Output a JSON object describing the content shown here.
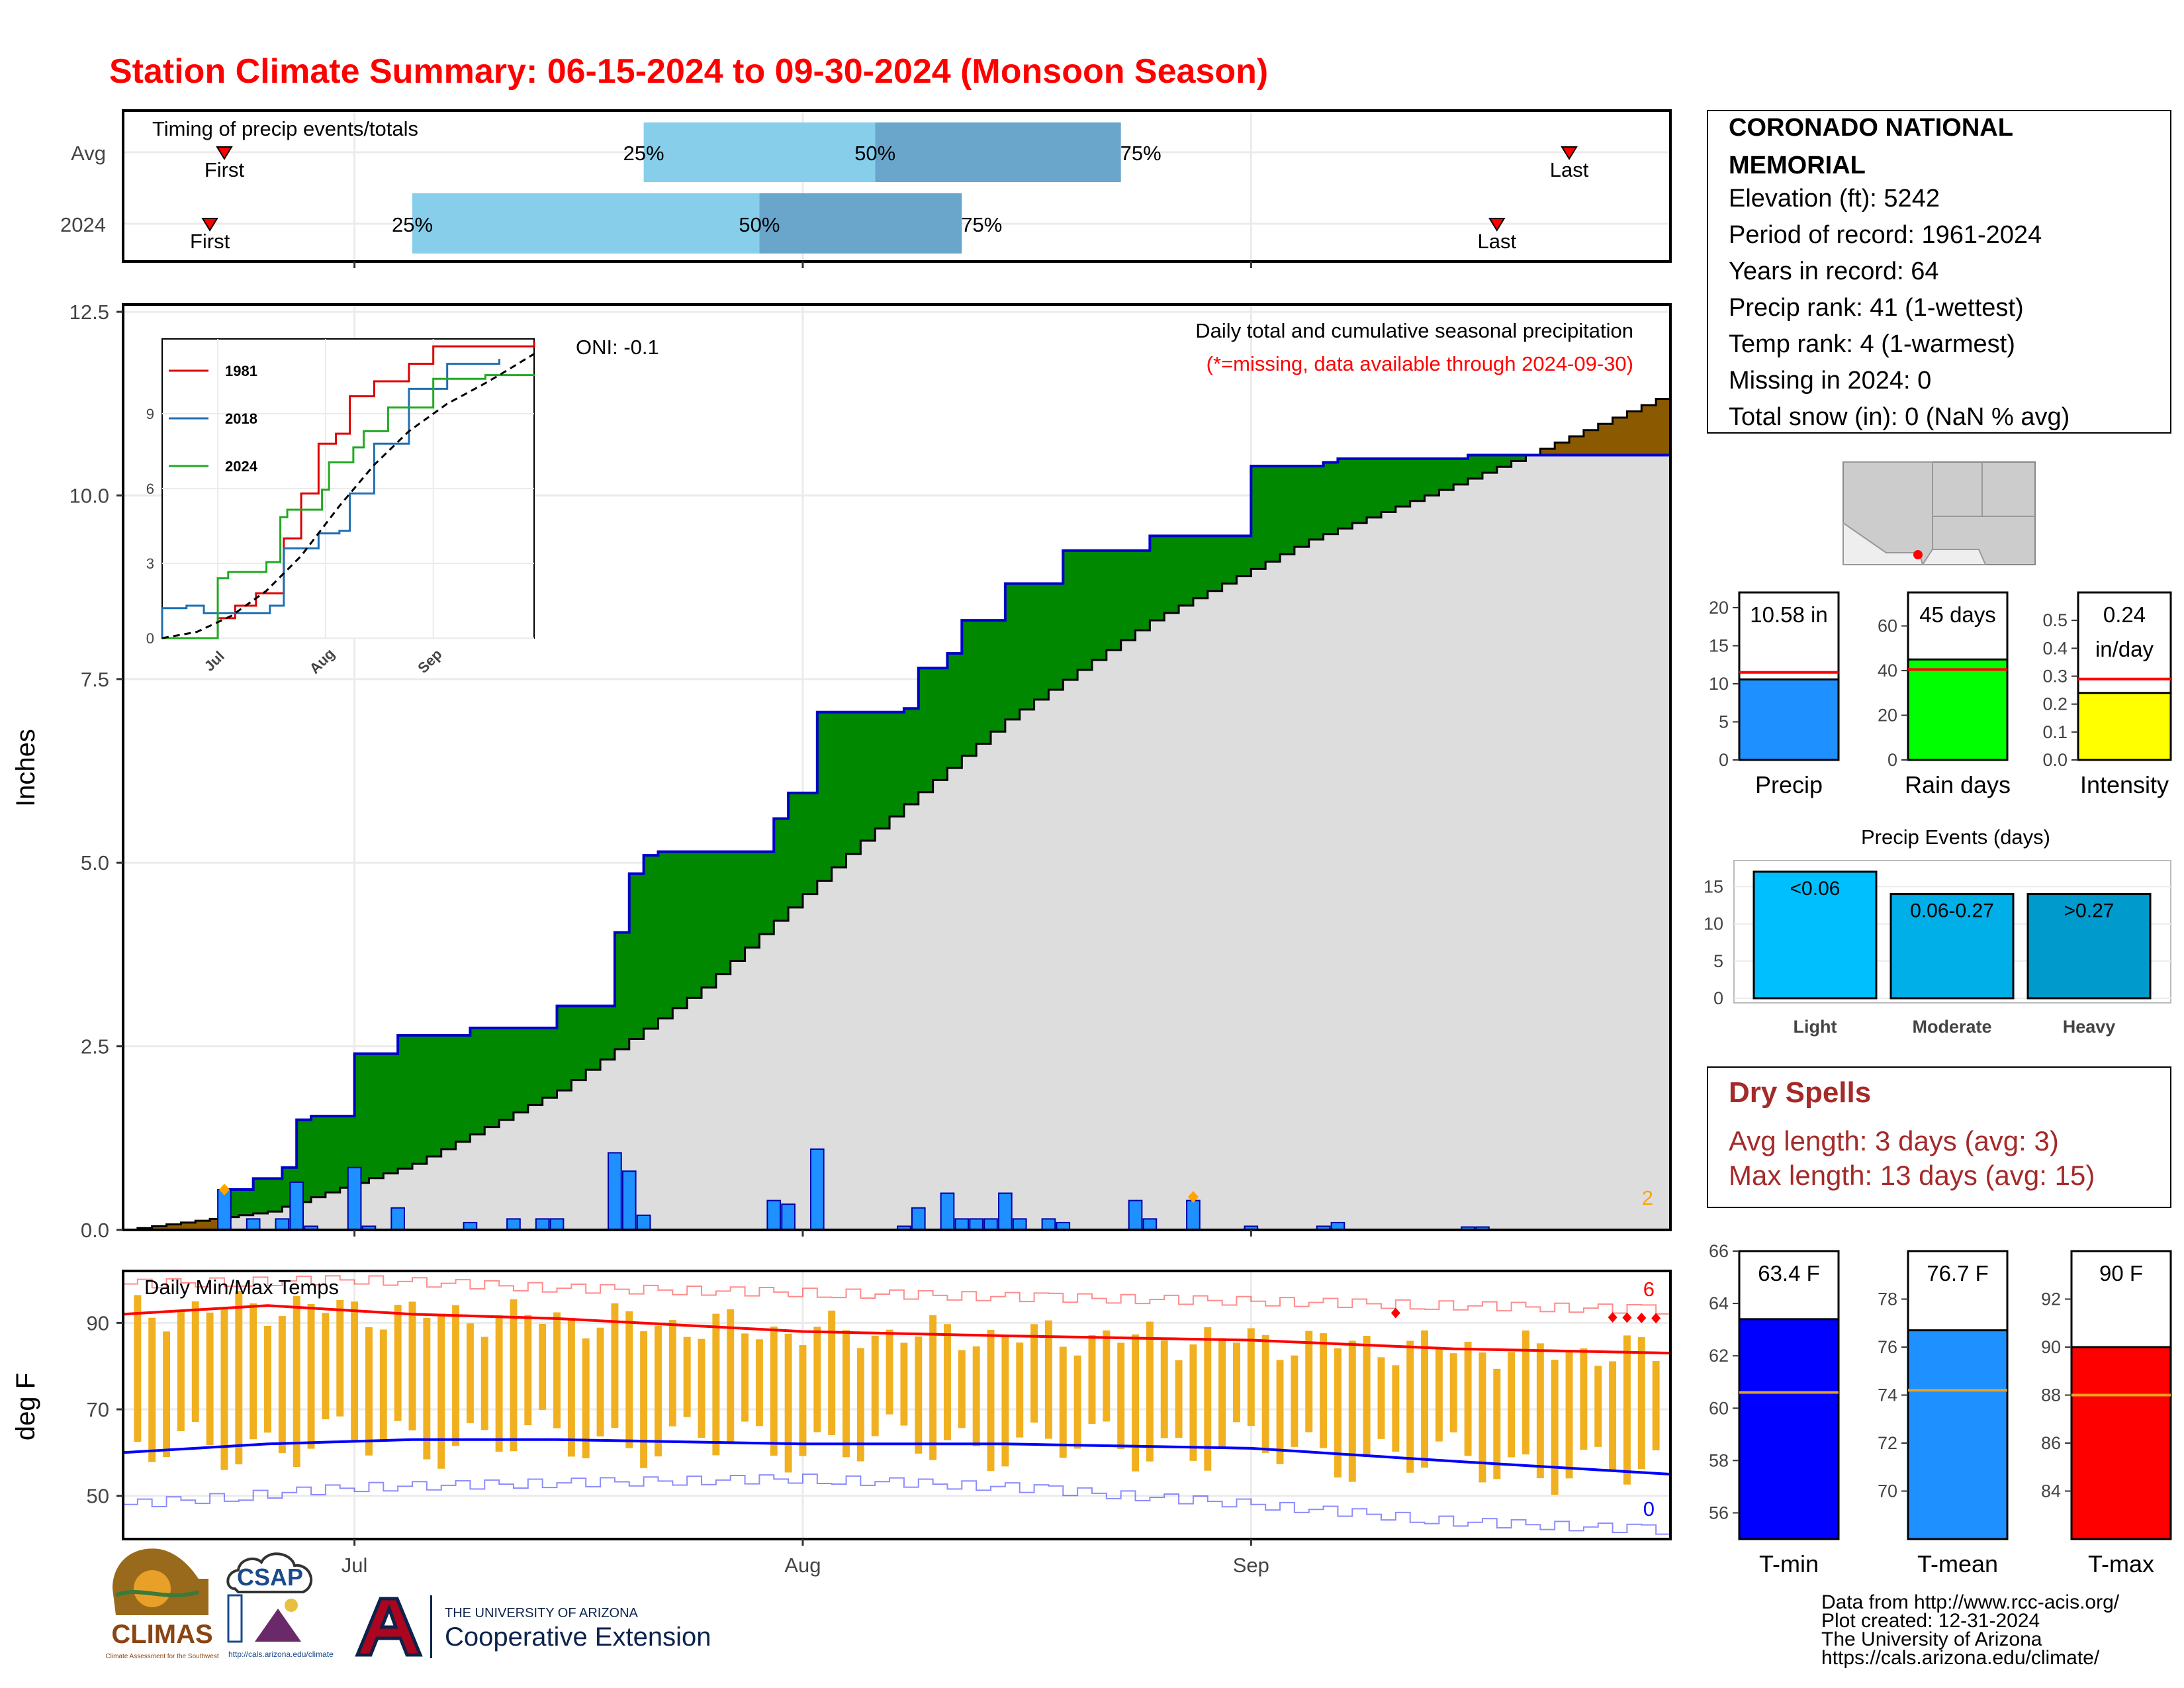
{
  "title": "Station Climate Summary: 06-15-2024 to 09-30-2024 (Monsoon Season)",
  "colors": {
    "title": "#ff0000",
    "green_fill": "#008800",
    "brown_fill": "#8b5a00",
    "normal_fill": "#dddddd",
    "cum_line": "#0000cc",
    "bar_blue": "#1e90ff",
    "tmin": "#0000ff",
    "tmean": "#1e90ff",
    "tmax": "#ff0000",
    "range_bars": "#f0b020",
    "light_q": "#87ceeb",
    "dark_q": "#6aa6cc",
    "dry_spells": "#a52a2a",
    "precip_gauge": "#1e90ff",
    "raindays_gauge": "#00ff00",
    "intensity_gauge": "#ffff00",
    "events": [
      "#00bfff",
      "#00aee8",
      "#009acc"
    ]
  },
  "timing_panel": {
    "title": "Timing of precip events/totals",
    "row_labels": [
      "Avg",
      "2024"
    ],
    "first_label": "First",
    "last_label": "Last",
    "q25_label": "25%",
    "q50_label": "50%",
    "q75_label": "75%",
    "avg": {
      "first": "2024-06-22",
      "q25": "2024-07-21",
      "q50": "2024-08-06",
      "q75": "2024-08-23",
      "last": "2024-09-23"
    },
    "y2024": {
      "first": "2024-06-21",
      "q25": "2024-07-05",
      "q50": "2024-07-29",
      "q75": "2024-08-12",
      "last": "2024-09-18"
    }
  },
  "precip_panel": {
    "annotation_title": "Daily total and cumulative seasonal precipitation",
    "annotation_missing": "(*=missing, data available through 2024-09-30)",
    "oni": "ONI: -0.1",
    "ylabel": "Inches",
    "yticks": [
      "0.0",
      "2.5",
      "5.0",
      "7.5",
      "10.0",
      "12.5"
    ],
    "corner_count": "2",
    "inset": {
      "yticks": [
        "0",
        "3",
        "6",
        "9"
      ],
      "xticks": [
        "Jul",
        "Aug",
        "Sep"
      ],
      "legend": [
        "1981",
        "2018",
        "2024"
      ]
    }
  },
  "temp_panel": {
    "title": "Daily Min/Max Temps",
    "ylabel": "deg F",
    "yticks": [
      "50",
      "70",
      "90"
    ],
    "count_max": "6",
    "count_min": "0"
  },
  "x_axis": {
    "ticks": [
      "Jul",
      "Aug",
      "Sep"
    ]
  },
  "station_info": {
    "name_line1": "CORONADO NATIONAL",
    "name_line2": "MEMORIAL",
    "elevation": "Elevation (ft): 5242",
    "period": "Period of record: 1961-2024",
    "years": "Years in record: 64",
    "precip_rank": "Precip rank: 41 (1-wettest)",
    "temp_rank": "Temp rank: 4 (1-warmest)",
    "missing": "Missing in 2024: 0",
    "snow": "Total snow (in): 0 (NaN % avg)"
  },
  "gauges": {
    "precip": {
      "label": "Precip",
      "value_label": "10.58 in",
      "value": 10.58,
      "avg": 11.5,
      "max": 22,
      "ticks": [
        "0",
        "5",
        "10",
        "15",
        "20"
      ]
    },
    "rain_days": {
      "label": "Rain days",
      "value_label": "45 days",
      "value": 45,
      "avg": 40.5,
      "max": 75,
      "ticks": [
        "0",
        "20",
        "40",
        "60"
      ]
    },
    "intensity": {
      "label": "Intensity",
      "value_label_1": "0.24",
      "value_label_2": "in/day",
      "value": 0.24,
      "avg": 0.29,
      "max": 0.6,
      "ticks": [
        "0.0",
        "0.1",
        "0.2",
        "0.3",
        "0.4",
        "0.5"
      ]
    }
  },
  "precip_events": {
    "title": "Precip Events (days)",
    "yticks": [
      "0",
      "5",
      "10",
      "15"
    ],
    "bars": [
      {
        "category": "Light",
        "label": "<0.06",
        "value": 17
      },
      {
        "category": "Moderate",
        "label": "0.06-0.27",
        "value": 14
      },
      {
        "category": "Heavy",
        "label": ">0.27",
        "value": 14
      }
    ]
  },
  "dry_spells": {
    "title": "Dry Spells",
    "avg_length": "Avg length: 3 days (avg: 3)",
    "max_length": "Max length: 13 days (avg: 15)"
  },
  "temp_gauges": {
    "tmin": {
      "label": "T-min",
      "value_label": "63.4 F",
      "value": 63.4,
      "avg": 60.6,
      "ymin": 55,
      "ymax": 66,
      "ticks": [
        "56",
        "58",
        "60",
        "62",
        "64",
        "66"
      ]
    },
    "tmean": {
      "label": "T-mean",
      "value_label": "76.7 F",
      "value": 76.7,
      "avg": 74.2,
      "ymin": 68,
      "ymax": 80,
      "ticks": [
        "70",
        "72",
        "74",
        "76",
        "78"
      ]
    },
    "tmax": {
      "label": "T-max",
      "value_label": "90 F",
      "value": 90.0,
      "avg": 88.0,
      "ymin": 82,
      "ymax": 94,
      "ticks": [
        "84",
        "86",
        "88",
        "90",
        "92"
      ]
    }
  },
  "footer": {
    "lines": [
      "Data from http://www.rcc-acis.org/",
      "Plot created: 12-31-2024",
      "The University of Arizona",
      "https://cals.arizona.edu/climate/"
    ],
    "logo_climas": "CLIMAS",
    "logo_climas_sub": "Climate Assessment for the Southwest",
    "logo_csap": "CSAP",
    "logo_csap_url": "http://cals.arizona.edu/climate",
    "ua_line1": "THE UNIVERSITY OF ARIZONA",
    "ua_line2": "Cooperative Extension"
  },
  "chart_data": [
    {
      "type": "area",
      "title": "Daily total and cumulative seasonal precipitation",
      "ylabel": "Inches",
      "ylim": [
        0,
        12.5
      ],
      "x_range": [
        "2024-06-15",
        "2024-09-30"
      ],
      "series": [
        {
          "name": "2024",
          "x": [
            "2024-06-15",
            "2024-06-22",
            "2024-06-24",
            "2024-06-26",
            "2024-06-27",
            "2024-06-28",
            "2024-07-01",
            "2024-07-04",
            "2024-07-09",
            "2024-07-12",
            "2024-07-15",
            "2024-07-19",
            "2024-07-20",
            "2024-07-21",
            "2024-07-22",
            "2024-07-30",
            "2024-07-31",
            "2024-08-02",
            "2024-08-08",
            "2024-08-09",
            "2024-08-11",
            "2024-08-12",
            "2024-08-15",
            "2024-08-18",
            "2024-08-19",
            "2024-08-24",
            "2024-08-25",
            "2024-08-28",
            "2024-09-01",
            "2024-09-06",
            "2024-09-07",
            "2024-09-16",
            "2024-09-30"
          ],
          "y": [
            0.0,
            0.55,
            0.7,
            0.85,
            1.5,
            1.55,
            2.4,
            2.65,
            2.75,
            2.75,
            3.05,
            4.05,
            4.85,
            5.1,
            5.15,
            5.6,
            5.95,
            7.05,
            7.1,
            7.65,
            7.85,
            8.3,
            8.8,
            8.8,
            9.25,
            9.25,
            9.45,
            9.45,
            10.4,
            10.45,
            10.5,
            10.55,
            10.58
          ]
        },
        {
          "name": "Average",
          "x": [
            "2024-06-15",
            "2024-06-25",
            "2024-07-05",
            "2024-07-15",
            "2024-07-25",
            "2024-08-05",
            "2024-08-15",
            "2024-08-25",
            "2024-09-05",
            "2024-09-15",
            "2024-09-20",
            "2024-09-30"
          ],
          "y": [
            0.0,
            0.25,
            0.9,
            1.9,
            3.3,
            5.3,
            6.95,
            8.3,
            9.4,
            10.15,
            10.55,
            11.4
          ]
        }
      ],
      "daily_bars": {
        "x": [
          "2024-06-22",
          "2024-06-24",
          "2024-06-26",
          "2024-06-27",
          "2024-06-28",
          "2024-07-01",
          "2024-07-02",
          "2024-07-04",
          "2024-07-09",
          "2024-07-12",
          "2024-07-14",
          "2024-07-15",
          "2024-07-19",
          "2024-07-20",
          "2024-07-21",
          "2024-07-30",
          "2024-07-31",
          "2024-08-02",
          "2024-08-08",
          "2024-08-09",
          "2024-08-11",
          "2024-08-12",
          "2024-08-13",
          "2024-08-14",
          "2024-08-15",
          "2024-08-16",
          "2024-08-18",
          "2024-08-19",
          "2024-08-24",
          "2024-08-25",
          "2024-08-28",
          "2024-09-01",
          "2024-09-06",
          "2024-09-07",
          "2024-09-16",
          "2024-09-17"
        ],
        "y": [
          0.55,
          0.15,
          0.15,
          0.65,
          0.05,
          0.85,
          0.05,
          0.3,
          0.1,
          0.15,
          0.15,
          0.15,
          1.05,
          0.8,
          0.2,
          0.4,
          0.35,
          1.1,
          0.05,
          0.3,
          0.5,
          0.15,
          0.15,
          0.15,
          0.5,
          0.15,
          0.15,
          0.1,
          0.4,
          0.15,
          0.4,
          0.05,
          0.05,
          0.1,
          0.04,
          0.04
        ]
      }
    },
    {
      "type": "line",
      "title": "Daily Min/Max Temps",
      "ylabel": "deg F",
      "x_range": [
        "2024-06-15",
        "2024-09-30"
      ],
      "series": [
        {
          "name": "Record high",
          "x": [
            "2024-06-15",
            "2024-07-01",
            "2024-07-15",
            "2024-08-01",
            "2024-08-15",
            "2024-09-01",
            "2024-09-15",
            "2024-09-30"
          ],
          "y": [
            99,
            100,
            98,
            97,
            96,
            95,
            94,
            93
          ]
        },
        {
          "name": "Avg max",
          "x": [
            "2024-06-15",
            "2024-06-25",
            "2024-07-05",
            "2024-07-15",
            "2024-08-01",
            "2024-08-15",
            "2024-09-01",
            "2024-09-15",
            "2024-09-30"
          ],
          "y": [
            92,
            94,
            92,
            91,
            88,
            87,
            86,
            84,
            83
          ]
        },
        {
          "name": "Avg min",
          "x": [
            "2024-06-15",
            "2024-06-25",
            "2024-07-05",
            "2024-07-15",
            "2024-08-01",
            "2024-08-15",
            "2024-09-01",
            "2024-09-15",
            "2024-09-30"
          ],
          "y": [
            60,
            62,
            63,
            63,
            62,
            62,
            61,
            58,
            55
          ]
        },
        {
          "name": "Record low",
          "x": [
            "2024-06-15",
            "2024-07-01",
            "2024-07-15",
            "2024-08-01",
            "2024-08-15",
            "2024-09-01",
            "2024-09-15",
            "2024-09-30"
          ],
          "y": [
            48,
            52,
            53,
            54,
            52,
            48,
            44,
            42
          ]
        }
      ]
    }
  ]
}
